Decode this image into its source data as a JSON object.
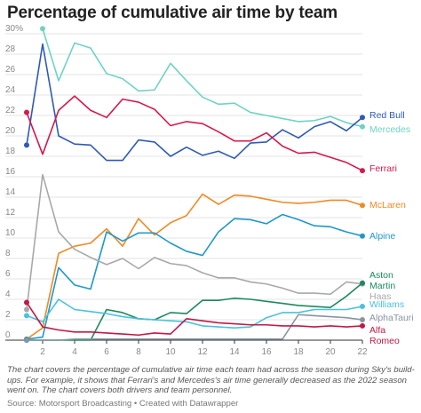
{
  "title": "Percentage of cumulative air time by team",
  "caption": "The chart covers the percentage of cumulative air time each team had across the season during Sky's build-ups. For example, it shows that Ferrari's and Mercedes's air time generally decreased as the 2022 season went on. The chart covers both drivers and team personnel.",
  "source": "Source: Motorsport Broadcasting • Created with Datawrapper",
  "chart_data": {
    "type": "line",
    "title": "Percentage of cumulative air time by team",
    "xlabel": "",
    "ylabel": "",
    "x": [
      1,
      2,
      3,
      4,
      5,
      6,
      7,
      8,
      9,
      10,
      11,
      12,
      13,
      14,
      15,
      16,
      17,
      18,
      19,
      20,
      21,
      22
    ],
    "xlim": [
      1,
      22
    ],
    "ylim": [
      0,
      30
    ],
    "x_ticks": [
      "2",
      "4",
      "6",
      "8",
      "10",
      "12",
      "14",
      "16",
      "18",
      "20",
      "22"
    ],
    "y_ticks": [
      "0",
      "2",
      "4",
      "6",
      "8",
      "10",
      "12",
      "14",
      "16",
      "18",
      "20",
      "22",
      "24",
      "26",
      "28",
      "30%"
    ],
    "grid": true,
    "legend": "direct labels at line ends",
    "series": [
      {
        "name": "Mercedes",
        "label_lines": [
          "Mercedes"
        ],
        "color": "#6fd3c3",
        "values": [
          null,
          30.5,
          25.4,
          29.1,
          28.6,
          26.1,
          25.6,
          24.4,
          24.5,
          27.1,
          25.4,
          23.8,
          23.1,
          23.2,
          22.3,
          22.0,
          21.7,
          21.4,
          21.5,
          21.9,
          21.3,
          20.9
        ]
      },
      {
        "name": "Red Bull",
        "label_lines": [
          "Red Bull"
        ],
        "color": "#2f5ab5",
        "values": [
          19.1,
          29.0,
          20.0,
          19.2,
          19.1,
          17.6,
          17.6,
          19.6,
          19.4,
          18.0,
          18.9,
          18.1,
          18.5,
          17.8,
          19.3,
          19.4,
          20.6,
          19.8,
          20.9,
          21.4,
          20.5,
          21.8
        ]
      },
      {
        "name": "Ferrari",
        "label_lines": [
          "Ferrari"
        ],
        "color": "#d6194c",
        "values": [
          22.3,
          18.2,
          22.5,
          23.9,
          22.5,
          21.8,
          23.6,
          23.3,
          22.6,
          21.0,
          21.4,
          21.2,
          20.4,
          19.5,
          19.5,
          20.3,
          19.0,
          18.3,
          18.4,
          17.9,
          17.4,
          16.6
        ]
      },
      {
        "name": "McLaren",
        "label_lines": [
          "McLaren"
        ],
        "color": "#ef8a22",
        "values": [
          0.1,
          1.2,
          8.5,
          9.2,
          9.5,
          10.9,
          9.2,
          11.9,
          10.3,
          11.5,
          12.2,
          14.3,
          13.3,
          14.2,
          14.1,
          13.8,
          13.5,
          13.4,
          13.5,
          13.7,
          13.7,
          13.2
        ]
      },
      {
        "name": "Alpine",
        "label_lines": [
          "Alpine"
        ],
        "color": "#1f98c9",
        "values": [
          0.1,
          0.3,
          7.1,
          5.4,
          5.0,
          10.6,
          9.7,
          10.5,
          10.5,
          9.5,
          8.7,
          8.3,
          10.6,
          11.9,
          11.8,
          11.4,
          12.3,
          11.8,
          11.2,
          11.1,
          10.6,
          10.2
        ]
      },
      {
        "name": "Haas",
        "label_lines": [
          "Haas"
        ],
        "color": "#a8a8a8",
        "values": [
          3.0,
          16.2,
          10.6,
          8.9,
          8.1,
          7.4,
          8.0,
          7.0,
          8.1,
          7.5,
          7.3,
          6.6,
          6.1,
          6.1,
          5.7,
          5.5,
          5.1,
          4.6,
          4.6,
          4.5,
          5.7,
          5.5
        ]
      },
      {
        "name": "Aston Martin",
        "label_lines": [
          "Aston",
          "Martin"
        ],
        "color": "#1d8a5e",
        "values": [
          0.0,
          0.0,
          0.0,
          0.0,
          0.0,
          3.0,
          2.7,
          2.1,
          2.0,
          2.7,
          2.6,
          3.9,
          3.9,
          4.1,
          4.0,
          3.8,
          3.6,
          3.4,
          3.3,
          3.2,
          4.3,
          5.6
        ]
      },
      {
        "name": "Williams",
        "label_lines": [
          "Williams"
        ],
        "color": "#49c2de",
        "values": [
          2.4,
          1.8,
          4.0,
          3.0,
          2.8,
          2.6,
          2.3,
          2.1,
          2.0,
          1.9,
          1.8,
          1.4,
          1.3,
          1.2,
          1.3,
          2.2,
          2.7,
          2.7,
          3.0,
          3.0,
          3.0,
          3.3
        ]
      },
      {
        "name": "AlphaTauri",
        "label_lines": [
          "AlphaTauri"
        ],
        "color": "#8894a4",
        "values": [
          0.0,
          0.0,
          0.0,
          0.1,
          0.1,
          0.1,
          0.1,
          0.1,
          0.1,
          0.1,
          0.1,
          0.1,
          0.1,
          0.1,
          0.1,
          0.1,
          0.1,
          2.5,
          2.4,
          2.3,
          2.2,
          2.0
        ]
      },
      {
        "name": "Alfa Romeo",
        "label_lines": [
          "Alfa",
          "Romeo"
        ],
        "color": "#c21846",
        "values": [
          3.7,
          1.3,
          1.0,
          0.8,
          0.8,
          0.7,
          0.6,
          0.5,
          0.7,
          0.6,
          2.1,
          1.9,
          1.7,
          1.6,
          1.5,
          1.5,
          1.4,
          1.4,
          1.3,
          1.4,
          1.3,
          1.4
        ]
      }
    ]
  }
}
